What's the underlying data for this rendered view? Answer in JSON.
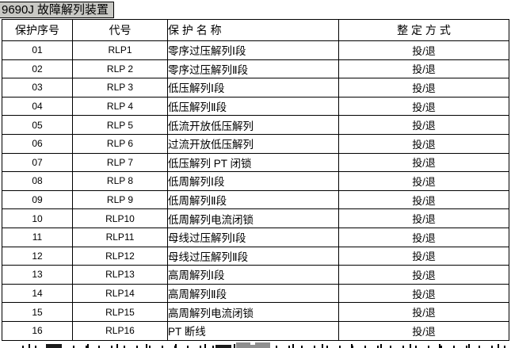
{
  "title": "9690J 故障解列装置",
  "table": {
    "headers": [
      "保护序号",
      "代号",
      "保 护 名 称",
      "整 定 方 式"
    ],
    "rows": [
      {
        "no": "01",
        "code": "RLP1",
        "name": "零序过压解列Ⅰ段",
        "mode": "投/退"
      },
      {
        "no": "02",
        "code": "RLP 2",
        "name": "零序过压解列Ⅱ段",
        "mode": "投/退"
      },
      {
        "no": "03",
        "code": "RLP 3",
        "name": "低压解列Ⅰ段",
        "mode": "投/退"
      },
      {
        "no": "04",
        "code": "RLP 4",
        "name": "低压解列Ⅱ段",
        "mode": "投/退"
      },
      {
        "no": "05",
        "code": "RLP 5",
        "name": "低流开放低压解列",
        "mode": "投/退"
      },
      {
        "no": "06",
        "code": "RLP 6",
        "name": "过流开放低压解列",
        "mode": "投/退"
      },
      {
        "no": "07",
        "code": "RLP 7",
        "name": "低压解列 PT 闭锁",
        "mode": "投/退"
      },
      {
        "no": "08",
        "code": "RLP 8",
        "name": "低周解列Ⅰ段",
        "mode": "投/退"
      },
      {
        "no": "09",
        "code": "RLP 9",
        "name": "低周解列Ⅱ段",
        "mode": "投/退"
      },
      {
        "no": "10",
        "code": "RLP10",
        "name": "低周解列电流闭锁",
        "mode": "投/退"
      },
      {
        "no": "11",
        "code": "RLP11",
        "name": "母线过压解列Ⅰ段",
        "mode": "投/退"
      },
      {
        "no": "12",
        "code": "RLP12",
        "name": "母线过压解列Ⅱ段",
        "mode": "投/退"
      },
      {
        "no": "13",
        "code": "RLP13",
        "name": "高周解列Ⅰ段",
        "mode": "投/退"
      },
      {
        "no": "14",
        "code": "RLP14",
        "name": "高周解列Ⅱ段",
        "mode": "投/退"
      },
      {
        "no": "15",
        "code": "RLP15",
        "name": "高周解列电流闭锁",
        "mode": "投/退"
      },
      {
        "no": "16",
        "code": "RLP16",
        "name": "PT 断线",
        "mode": "投/退"
      }
    ]
  },
  "colors": {
    "title_background": "#c8c8c4",
    "table_border": "#000000",
    "text": "#000000",
    "selection_gray": "#8f8f8f"
  }
}
